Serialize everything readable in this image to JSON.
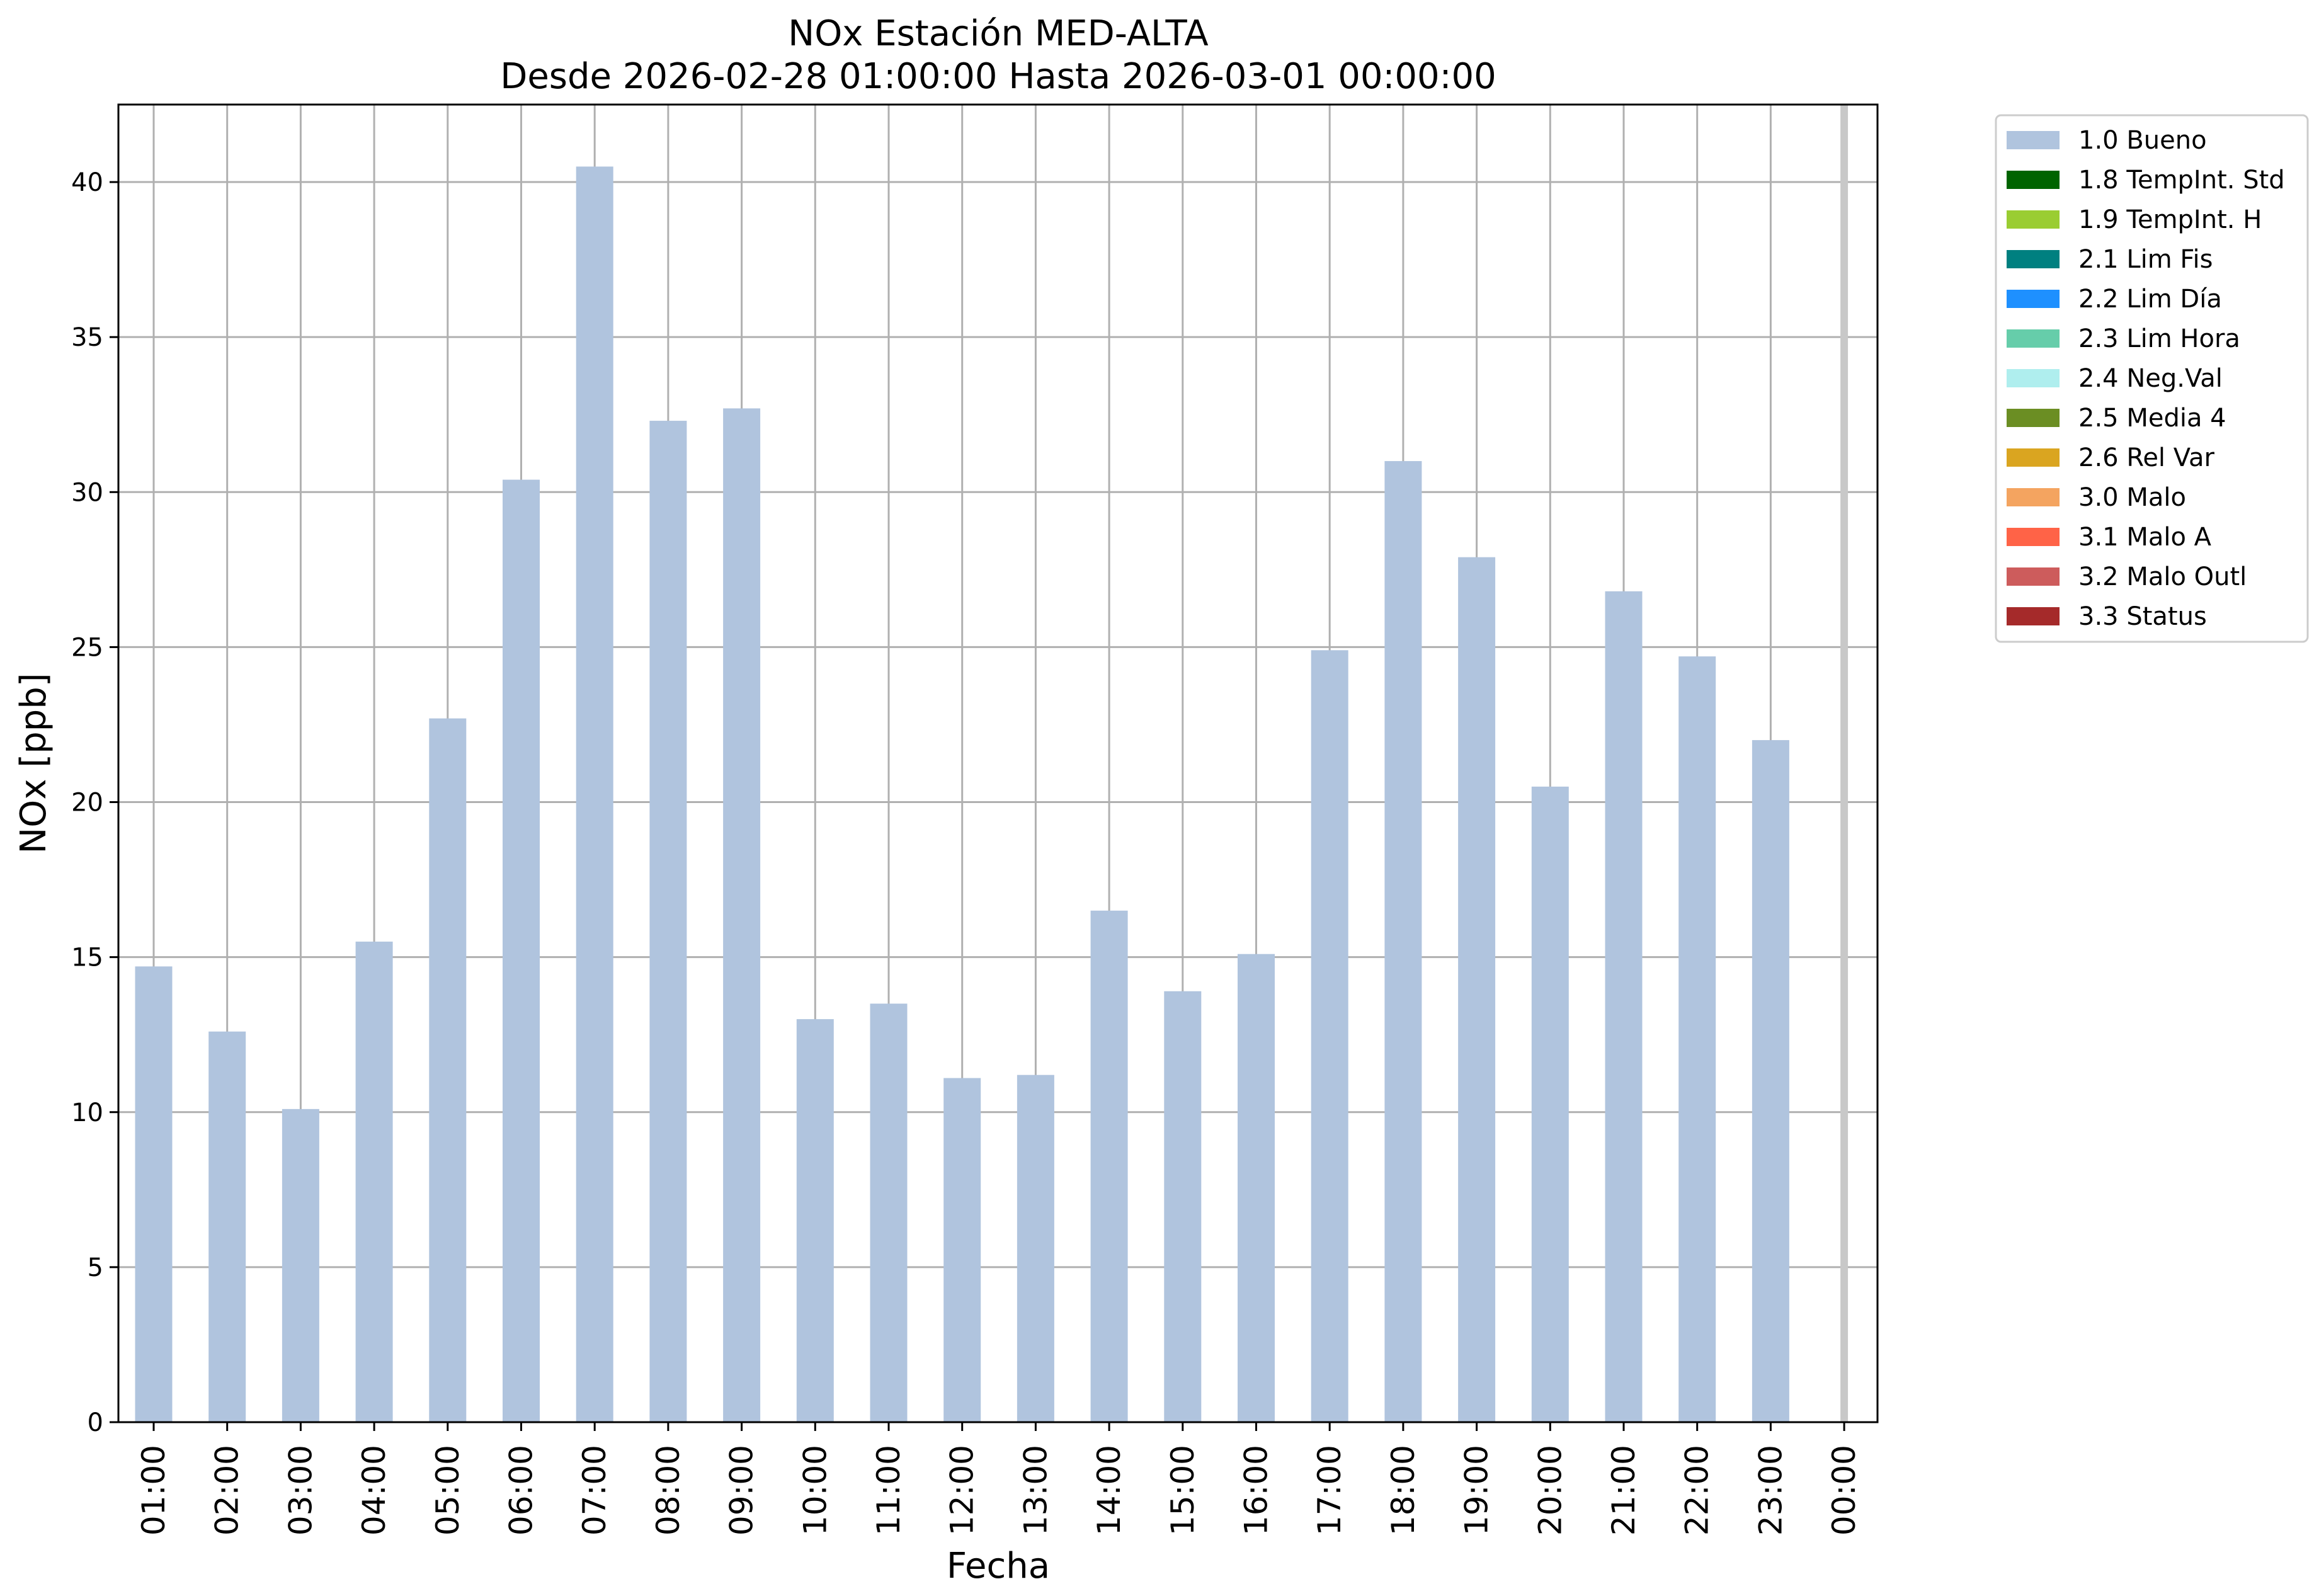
{
  "chart_data": {
    "type": "bar",
    "title": "NOx Estación MED-ALTA",
    "subtitle": "Desde 2026-02-28 01:00:00 Hasta 2026-03-01 00:00:00",
    "xlabel": "Fecha",
    "ylabel": "NOx [ppb]",
    "ylim": [
      0,
      42.5
    ],
    "yticks": [
      "0",
      "5",
      "10",
      "15",
      "20",
      "25",
      "30",
      "35",
      "40"
    ],
    "grid": true,
    "legend_position": "outside-top-right",
    "categories": [
      "01:00",
      "02:00",
      "03:00",
      "04:00",
      "05:00",
      "06:00",
      "07:00",
      "08:00",
      "09:00",
      "10:00",
      "11:00",
      "12:00",
      "13:00",
      "14:00",
      "15:00",
      "16:00",
      "17:00",
      "18:00",
      "19:00",
      "20:00",
      "21:00",
      "22:00",
      "23:00",
      "00:00"
    ],
    "series": [
      {
        "name": "1.0 Bueno",
        "color": "#b0c4de",
        "values": [
          14.7,
          12.6,
          10.1,
          15.5,
          22.7,
          30.4,
          40.5,
          32.3,
          32.7,
          13.0,
          13.5,
          11.1,
          11.2,
          16.5,
          13.9,
          15.1,
          24.9,
          31.0,
          27.9,
          20.5,
          26.8,
          24.7,
          22.0,
          null
        ]
      }
    ],
    "legend": [
      {
        "label": "1.0 Bueno",
        "color": "#b0c4de"
      },
      {
        "label": "1.8 TempInt. Std",
        "color": "#006400"
      },
      {
        "label": "1.9 TempInt. H",
        "color": "#9acd32"
      },
      {
        "label": "2.1 Lim Fis",
        "color": "#008080"
      },
      {
        "label": "2.2 Lim Día",
        "color": "#1e90ff"
      },
      {
        "label": "2.3 Lim Hora",
        "color": "#66cdaa"
      },
      {
        "label": "2.4 Neg.Val",
        "color": "#afeeee"
      },
      {
        "label": "2.5 Media 4",
        "color": "#6b8e23"
      },
      {
        "label": "2.6 Rel Var",
        "color": "#daa520"
      },
      {
        "label": "3.0 Malo",
        "color": "#f4a460"
      },
      {
        "label": "3.1 Malo A",
        "color": "#ff6347"
      },
      {
        "label": "3.2 Malo Outl",
        "color": "#cd5c5c"
      },
      {
        "label": "3.3 Status",
        "color": "#a52a2a"
      }
    ]
  }
}
